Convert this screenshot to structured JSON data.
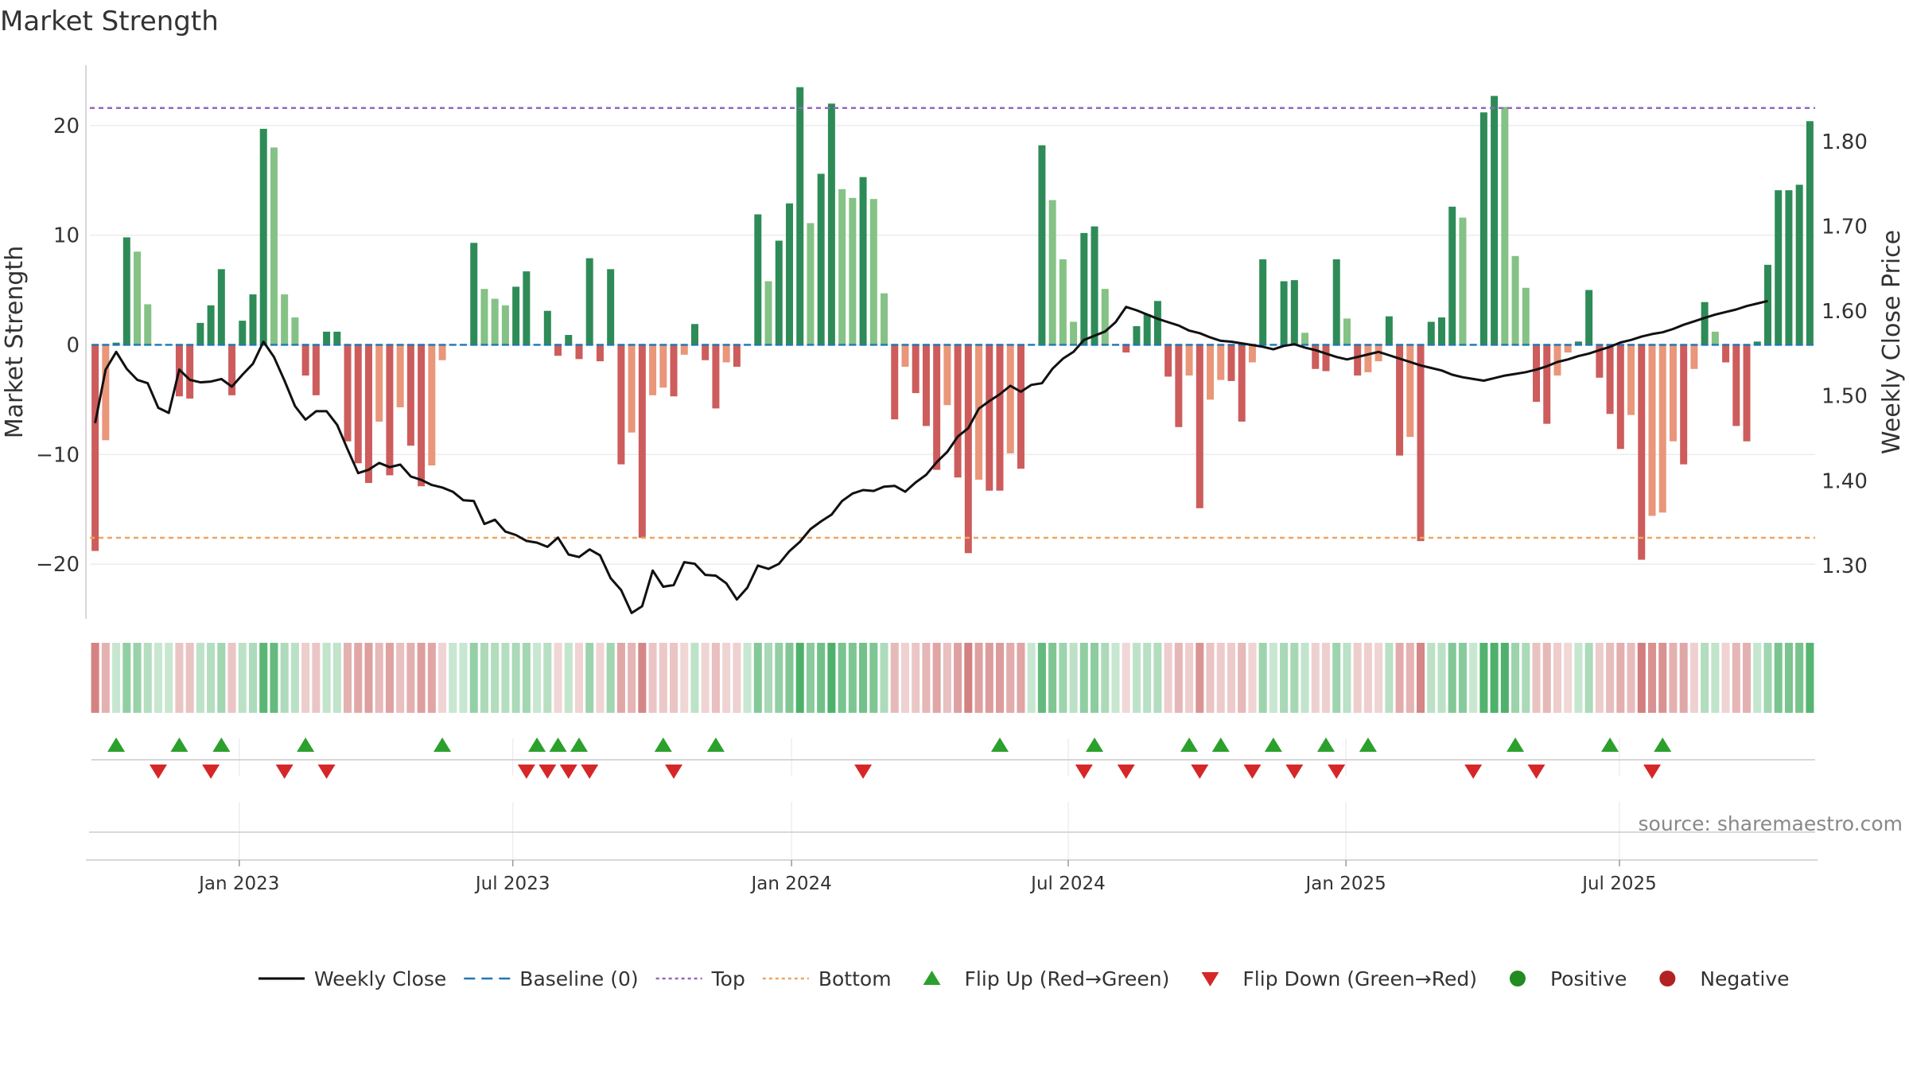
{
  "chart_data": {
    "type": "bar",
    "title": "Market Strength",
    "ylabel": "Market Strength",
    "y2label": "Weekly Close Price",
    "ylim": [
      -25,
      25.5
    ],
    "y2lim": [
      1.237,
      1.89
    ],
    "yticks": [
      -20,
      -10,
      0,
      10,
      20
    ],
    "y2ticks": [
      1.3,
      1.4,
      1.5,
      1.6,
      1.7,
      1.8
    ],
    "x_weeks": 162,
    "xticks": [
      {
        "label": "Jan 2023",
        "week": 14.2
      },
      {
        "label": "Jul 2023",
        "week": 40.2
      },
      {
        "label": "Jan 2024",
        "week": 66.7
      },
      {
        "label": "Jul 2024",
        "week": 93.0
      },
      {
        "label": "Jan 2025",
        "week": 119.4
      },
      {
        "label": "Jul 2025",
        "week": 145.4
      }
    ],
    "top": 21.6,
    "bottom": -17.6,
    "strength": [
      -18.8,
      -8.7,
      0.2,
      9.8,
      8.5,
      3.7,
      0,
      0,
      -4.7,
      -4.9,
      2.0,
      3.6,
      6.9,
      -4.6,
      2.2,
      4.6,
      19.7,
      18.0,
      4.6,
      2.5,
      -2.8,
      -4.6,
      1.2,
      1.2,
      -8.8,
      -10.8,
      -12.6,
      -7.0,
      -11.9,
      -5.7,
      -9.2,
      -12.9,
      -11.0,
      -1.4,
      0,
      0,
      9.3,
      5.1,
      4.2,
      3.6,
      5.3,
      6.7,
      0,
      3.1,
      -1.0,
      0.9,
      -1.3,
      7.9,
      -1.5,
      6.9,
      -10.9,
      -8.0,
      -17.6,
      -4.6,
      -3.9,
      -4.7,
      -0.9,
      1.9,
      -1.4,
      -5.8,
      -1.6,
      -2.0,
      0,
      11.9,
      5.8,
      9.5,
      12.9,
      23.5,
      11.1,
      15.6,
      22.0,
      14.2,
      13.4,
      15.3,
      13.3,
      4.7,
      -6.8,
      -2.0,
      -4.4,
      -7.4,
      -11.4,
      -5.5,
      -12.1,
      -19.0,
      -12.3,
      -13.3,
      -13.3,
      -9.9,
      -11.3,
      0,
      18.2,
      13.2,
      7.8,
      2.1,
      10.2,
      10.8,
      5.1,
      0,
      -0.7,
      1.7,
      2.8,
      4.0,
      -2.9,
      -7.5,
      -2.8,
      -14.9,
      -5.0,
      -3.2,
      -3.3,
      -7.0,
      -1.6,
      7.8,
      0,
      5.8,
      5.9,
      1.1,
      -2.2,
      -2.4,
      7.8,
      2.4,
      -2.8,
      -2.5,
      -1.5,
      2.6,
      -10.1,
      -8.4,
      -17.9,
      2.1,
      2.5,
      12.6,
      11.6,
      0,
      21.2,
      22.7,
      21.7,
      8.1,
      5.2,
      -5.2,
      -7.2,
      -2.8,
      -0.7,
      0.3,
      5.0,
      -3.0,
      -6.3,
      -9.5,
      -6.4,
      -19.6,
      -15.6,
      -15.3,
      -8.8,
      -10.9,
      -2.2,
      3.9,
      1.2,
      -1.6,
      -7.4,
      -8.8,
      0.3,
      7.3,
      14.1,
      14.1,
      14.6,
      20.4
    ],
    "close": [
      1.468,
      1.531,
      1.552,
      1.532,
      1.519,
      1.515,
      1.486,
      1.48,
      1.531,
      1.519,
      1.516,
      1.517,
      1.52,
      1.511,
      1.525,
      1.538,
      1.564,
      1.546,
      1.518,
      1.488,
      1.472,
      1.482,
      1.482,
      1.466,
      1.437,
      1.409,
      1.413,
      1.421,
      1.416,
      1.419,
      1.405,
      1.401,
      1.395,
      1.392,
      1.387,
      1.377,
      1.376,
      1.349,
      1.354,
      1.34,
      1.336,
      1.329,
      1.327,
      1.322,
      1.333,
      1.313,
      1.31,
      1.319,
      1.312,
      1.285,
      1.271,
      1.244,
      1.252,
      1.294,
      1.275,
      1.277,
      1.304,
      1.302,
      1.289,
      1.288,
      1.279,
      1.26,
      1.274,
      1.3,
      1.296,
      1.302,
      1.317,
      1.328,
      1.343,
      1.352,
      1.36,
      1.376,
      1.385,
      1.389,
      1.388,
      1.393,
      1.394,
      1.387,
      1.398,
      1.407,
      1.422,
      1.434,
      1.452,
      1.462,
      1.485,
      1.494,
      1.502,
      1.512,
      1.505,
      1.513,
      1.515,
      1.532,
      1.544,
      1.552,
      1.566,
      1.571,
      1.576,
      1.587,
      1.605,
      1.601,
      1.596,
      1.591,
      1.587,
      1.583,
      1.577,
      1.574,
      1.569,
      1.565,
      1.564,
      1.562,
      1.56,
      1.558,
      1.555,
      1.559,
      1.561,
      1.557,
      1.554,
      1.55,
      1.546,
      1.543,
      1.546,
      1.549,
      1.552,
      1.548,
      1.544,
      1.54,
      1.536,
      1.533,
      1.53,
      1.525,
      1.522,
      1.52,
      1.518,
      1.521,
      1.524,
      1.526,
      1.528,
      1.531,
      1.535,
      1.54,
      1.543,
      1.547,
      1.55,
      1.554,
      1.558,
      1.563,
      1.566,
      1.57,
      1.573,
      1.575,
      1.579,
      1.584,
      1.588,
      1.592,
      1.596,
      1.599,
      1.602,
      1.606,
      1.609,
      1.612
    ],
    "flip_up_weeks": [
      2,
      8,
      12,
      20,
      33,
      42,
      44,
      46,
      54,
      59,
      86,
      95,
      104,
      107,
      112,
      117,
      121,
      135,
      144,
      149
    ],
    "flip_down_weeks": [
      6,
      11,
      18,
      22,
      41,
      43,
      45,
      47,
      55,
      73,
      94,
      98,
      105,
      110,
      114,
      118,
      131,
      137,
      148
    ],
    "legend": [
      {
        "label": "Weekly Close",
        "type": "line",
        "color": "#000000"
      },
      {
        "label": "Baseline (0)",
        "type": "dash",
        "color": "#1f77b4"
      },
      {
        "label": "Top",
        "type": "dot",
        "color": "#9467bd"
      },
      {
        "label": "Bottom",
        "type": "dot",
        "color": "#f0a35e"
      },
      {
        "label": "Flip Up (Red→Green)",
        "type": "tri-up",
        "color": "#2ca02c"
      },
      {
        "label": "Flip Down (Green→Red)",
        "type": "tri-down",
        "color": "#d62728"
      },
      {
        "label": "Positive",
        "type": "circle",
        "color": "#228b22"
      },
      {
        "label": "Negative",
        "type": "circle",
        "color": "#b22222"
      }
    ],
    "source": "source: sharemaestro.com",
    "colors": {
      "pos_strong": "#2e8b57",
      "pos_light": "#85c285",
      "neg_strong": "#cd5c5c",
      "neg_light": "#e9967a",
      "baseline": "#1f77b4",
      "top": "#9467bd",
      "bottom": "#f0a35e",
      "close_line": "#111111",
      "flip_up": "#2ca02c",
      "flip_down": "#d62728"
    }
  }
}
